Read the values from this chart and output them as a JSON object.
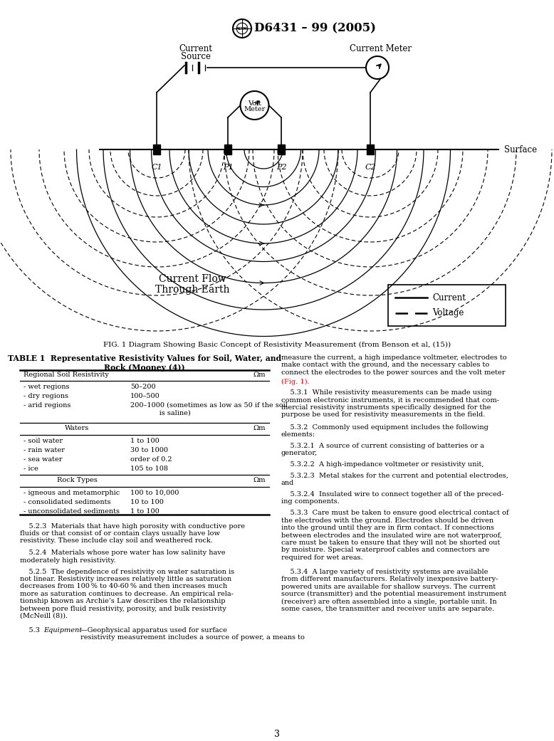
{
  "title": "D6431 – 99 (2005)",
  "fig_caption": "FIG. 1 Diagram Showing Basic Concept of Resistivity Measurement (from Benson et al, (15))",
  "table_title": "TABLE 1  Representative Resistivity Values for Soil, Water, and\nRock (Mooney (4))",
  "page_number": "3",
  "background_color": "#ffffff",
  "text_color": "#000000",
  "elec_xs": {
    "C1": 220,
    "P1": 320,
    "P2": 395,
    "C2": 520
  }
}
